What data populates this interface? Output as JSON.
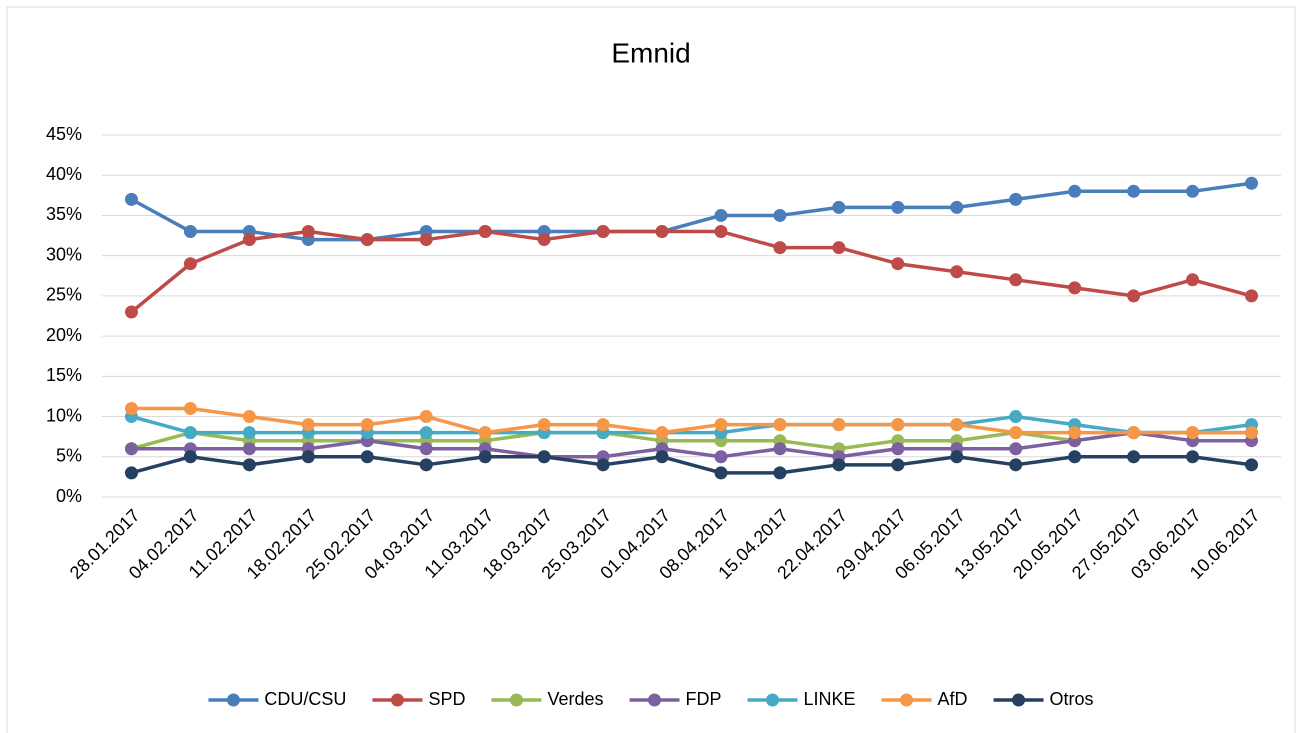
{
  "chart_data": {
    "type": "line",
    "title": "Emnid",
    "categories": [
      "28.01.2017",
      "04.02.2017",
      "11.02.2017",
      "18.02.2017",
      "25.02.2017",
      "04.03.2017",
      "11.03.2017",
      "18.03.2017",
      "25.03.2017",
      "01.04.2017",
      "08.04.2017",
      "15.04.2017",
      "22.04.2017",
      "29.04.2017",
      "06.05.2017",
      "13.05.2017",
      "20.05.2017",
      "27.05.2017",
      "03.06.2017",
      "10.06.2017"
    ],
    "series": [
      {
        "name": "CDU/CSU",
        "color": "#4a7ebb",
        "values": [
          37,
          33,
          33,
          32,
          32,
          33,
          33,
          33,
          33,
          33,
          35,
          35,
          36,
          36,
          36,
          37,
          38,
          38,
          38,
          39
        ]
      },
      {
        "name": "SPD",
        "color": "#be4b48",
        "values": [
          23,
          29,
          32,
          33,
          32,
          32,
          33,
          32,
          33,
          33,
          33,
          31,
          31,
          29,
          28,
          27,
          26,
          25,
          27,
          25
        ]
      },
      {
        "name": "Verdes",
        "color": "#98b954",
        "values": [
          6,
          8,
          7,
          7,
          7,
          7,
          7,
          8,
          8,
          7,
          7,
          7,
          6,
          7,
          7,
          8,
          7,
          8,
          8,
          8
        ]
      },
      {
        "name": "FDP",
        "color": "#7d60a0",
        "values": [
          6,
          6,
          6,
          6,
          7,
          6,
          6,
          5,
          5,
          6,
          5,
          6,
          5,
          6,
          6,
          6,
          7,
          8,
          7,
          7
        ]
      },
      {
        "name": "LINKE",
        "color": "#46aac5",
        "values": [
          10,
          8,
          8,
          8,
          8,
          8,
          8,
          8,
          8,
          8,
          8,
          9,
          9,
          9,
          9,
          10,
          9,
          8,
          8,
          9
        ]
      },
      {
        "name": "AfD",
        "color": "#f79646",
        "values": [
          11,
          11,
          10,
          9,
          9,
          10,
          8,
          9,
          9,
          8,
          9,
          9,
          9,
          9,
          9,
          8,
          8,
          8,
          8,
          8
        ]
      },
      {
        "name": "Otros",
        "color": "#254061",
        "values": [
          3,
          5,
          4,
          5,
          5,
          4,
          5,
          5,
          4,
          5,
          3,
          3,
          4,
          4,
          5,
          4,
          5,
          5,
          5,
          4
        ]
      }
    ],
    "ylim": [
      0,
      45
    ],
    "yticks": [
      {
        "value": 0,
        "label": "0%"
      },
      {
        "value": 5,
        "label": "5%"
      },
      {
        "value": 10,
        "label": "10%"
      },
      {
        "value": 15,
        "label": "15%"
      },
      {
        "value": 20,
        "label": "20%"
      },
      {
        "value": 25,
        "label": "25%"
      },
      {
        "value": 30,
        "label": "30%"
      },
      {
        "value": 35,
        "label": "35%"
      },
      {
        "value": 40,
        "label": "40%"
      },
      {
        "value": 45,
        "label": "45%"
      }
    ],
    "grid": true,
    "legend": "bottom"
  }
}
